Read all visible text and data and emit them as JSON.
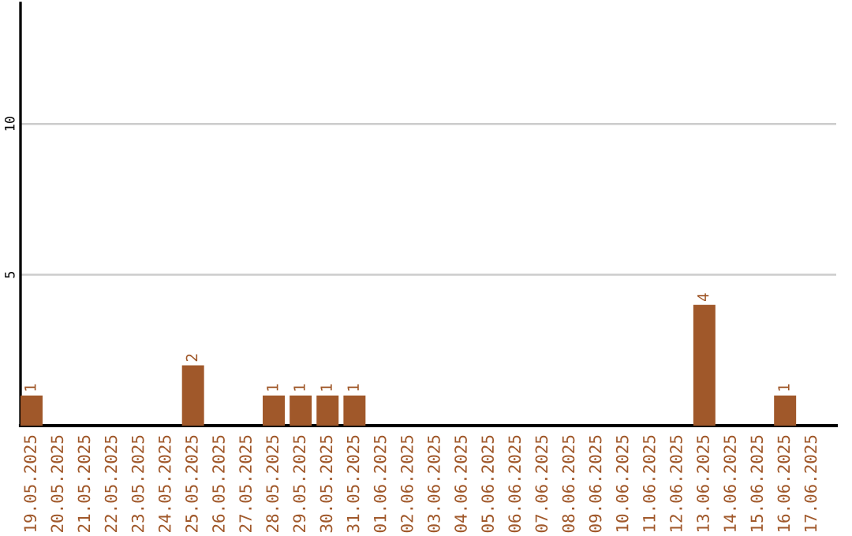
{
  "chart_data": {
    "type": "bar",
    "categories": [
      "19.05.2025",
      "20.05.2025",
      "21.05.2025",
      "22.05.2025",
      "23.05.2025",
      "24.05.2025",
      "25.05.2025",
      "26.05.2025",
      "27.05.2025",
      "28.05.2025",
      "29.05.2025",
      "30.05.2025",
      "31.05.2025",
      "01.06.2025",
      "02.06.2025",
      "03.06.2025",
      "04.06.2025",
      "05.06.2025",
      "06.06.2025",
      "07.06.2025",
      "08.06.2025",
      "09.06.2025",
      "10.06.2025",
      "11.06.2025",
      "12.06.2025",
      "13.06.2025",
      "14.06.2025",
      "15.06.2025",
      "16.06.2025",
      "17.06.2025"
    ],
    "values": [
      1,
      0,
      0,
      0,
      0,
      0,
      2,
      0,
      0,
      1,
      1,
      1,
      1,
      0,
      0,
      0,
      0,
      0,
      0,
      0,
      0,
      0,
      0,
      0,
      0,
      4,
      0,
      0,
      1,
      0
    ],
    "value_labels": [
      "1",
      null,
      null,
      null,
      null,
      null,
      "2",
      null,
      null,
      "1",
      "1",
      "1",
      "1",
      null,
      null,
      null,
      null,
      null,
      null,
      null,
      null,
      null,
      null,
      null,
      null,
      "4",
      null,
      null,
      "1",
      null
    ],
    "color": "#a0582a",
    "ylim": [
      0,
      14
    ],
    "yticks": [
      {
        "value": 0,
        "label": null
      },
      5,
      10
    ],
    "grid": "y",
    "legend": false
  }
}
